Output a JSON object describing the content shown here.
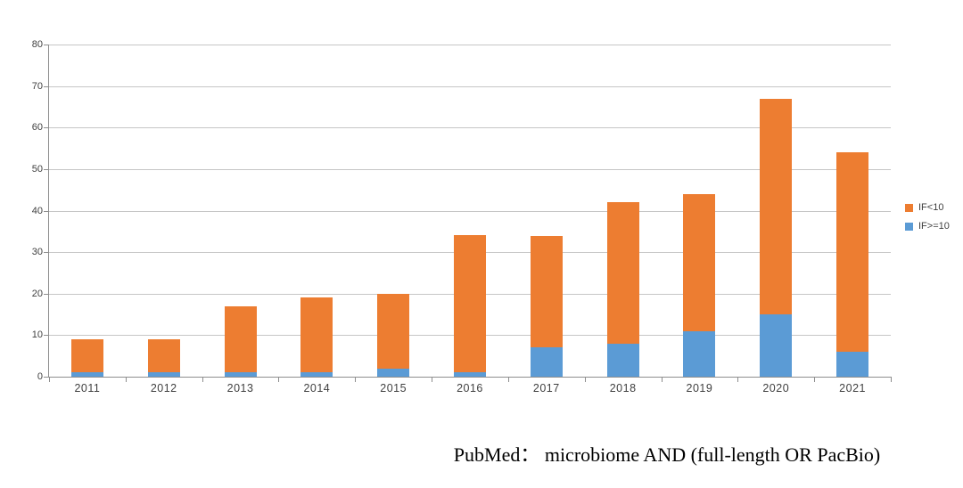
{
  "chart_data": {
    "type": "bar",
    "stacked": true,
    "title": "",
    "xlabel": "",
    "ylabel": "",
    "categories": [
      "2011",
      "2012",
      "2013",
      "2014",
      "2015",
      "2016",
      "2017",
      "2018",
      "2019",
      "2020",
      "2021"
    ],
    "series": [
      {
        "name": "IF<10",
        "color": "#ED7D31",
        "values": [
          8,
          8,
          16,
          18,
          18,
          33,
          27,
          34,
          33,
          52,
          48
        ]
      },
      {
        "name": "IF>=10",
        "color": "#5B9BD5",
        "values": [
          1,
          1,
          1,
          1,
          2,
          1,
          7,
          8,
          11,
          15,
          6
        ]
      }
    ],
    "stack_bottom_to_top": [
      "IF>=10",
      "IF<10"
    ],
    "totals": [
      9,
      9,
      17,
      19,
      20,
      34,
      34,
      42,
      44,
      67,
      54
    ],
    "ylim": [
      0,
      80
    ],
    "ytick_step": 10,
    "yticks": [
      "0",
      "10",
      "20",
      "30",
      "40",
      "50",
      "60",
      "70",
      "80"
    ],
    "grid": true,
    "legend_position": "right",
    "axis_color": "#8e8e8e",
    "gridline_color": "#c6c6c6",
    "label_color": "#404040"
  },
  "legend": {
    "items": [
      {
        "label": "IF<10",
        "color": "#ED7D31"
      },
      {
        "label": "IF>=10",
        "color": "#5B9BD5"
      }
    ]
  },
  "caption": {
    "text": "PubMed： microbiome AND (full-length OR PacBio)"
  }
}
